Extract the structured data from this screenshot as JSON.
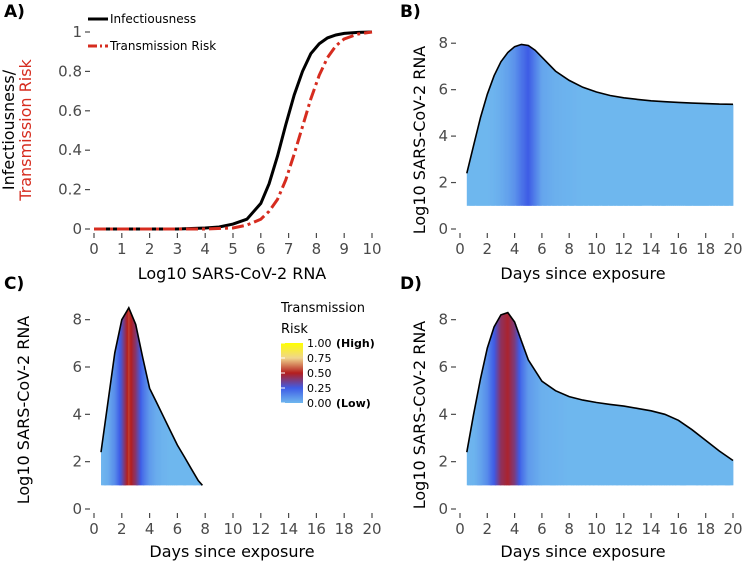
{
  "colors": {
    "infectiousness": "#000000",
    "transmission": "#d62c1f",
    "area_base": "#87ceeb",
    "risk_low": "#6fb7ee",
    "risk_quarter": "#3e5ce6",
    "risk_mid": "#b41e1e",
    "risk_three_quarter": "#f0d58c",
    "risk_high": "#ffff00"
  },
  "chart_data": [
    {
      "panel": "A)",
      "type": "line",
      "ylabel_line1": "Infectiousness/",
      "ylabel_line2": "Transmission Risk",
      "xlabel": "Log10 SARS-CoV-2 RNA",
      "xlim": [
        0,
        10
      ],
      "ylim": [
        0,
        1
      ],
      "x_ticks": [
        "0",
        "1",
        "2",
        "3",
        "4",
        "5",
        "6",
        "7",
        "8",
        "9",
        "10"
      ],
      "y_ticks": [
        "0",
        "0.2",
        "0.4",
        "0.6",
        "0.8",
        "1"
      ],
      "legend": [
        "Infectiousness",
        "Transmission  Risk"
      ],
      "series": [
        {
          "name": "Infectiousness",
          "x": [
            0,
            1,
            2,
            3,
            4,
            4.5,
            5,
            5.5,
            6,
            6.3,
            6.6,
            6.9,
            7.2,
            7.5,
            7.8,
            8.1,
            8.4,
            8.7,
            9,
            9.5,
            10
          ],
          "y": [
            0,
            0,
            0,
            0,
            0.005,
            0.01,
            0.025,
            0.05,
            0.13,
            0.23,
            0.37,
            0.53,
            0.68,
            0.8,
            0.89,
            0.94,
            0.97,
            0.985,
            0.993,
            0.998,
            1
          ]
        },
        {
          "name": "Transmission  Risk",
          "x": [
            0,
            1,
            2,
            3,
            4,
            5,
            5.5,
            6,
            6.3,
            6.6,
            6.9,
            7.2,
            7.5,
            7.8,
            8.1,
            8.4,
            8.7,
            9,
            9.5,
            10
          ],
          "y": [
            0,
            0,
            0,
            0,
            0,
            0.005,
            0.02,
            0.05,
            0.09,
            0.15,
            0.25,
            0.38,
            0.52,
            0.66,
            0.78,
            0.87,
            0.93,
            0.965,
            0.99,
            1
          ]
        }
      ]
    },
    {
      "panel": "B)",
      "type": "area",
      "xlabel": "Days since exposure",
      "ylabel": "Log10 SARS-CoV-2 RNA",
      "xlim": [
        0,
        20
      ],
      "ylim": [
        0,
        9
      ],
      "x_ticks": [
        "0",
        "2",
        "4",
        "6",
        "8",
        "10",
        "12",
        "14",
        "16",
        "18",
        "20"
      ],
      "y_ticks": [
        "0",
        "2",
        "4",
        "6",
        "8"
      ],
      "baseline": 1,
      "x": [
        0.5,
        1,
        1.5,
        2,
        2.5,
        3,
        3.5,
        4,
        4.5,
        5,
        5.5,
        6,
        7,
        8,
        9,
        10,
        11,
        12,
        13,
        14,
        15,
        16,
        17,
        18,
        19,
        20
      ],
      "y": [
        2.4,
        3.6,
        4.8,
        5.8,
        6.6,
        7.2,
        7.6,
        7.85,
        7.95,
        7.9,
        7.7,
        7.4,
        6.8,
        6.4,
        6.1,
        5.9,
        5.75,
        5.65,
        5.58,
        5.52,
        5.48,
        5.45,
        5.42,
        5.4,
        5.38,
        5.37
      ],
      "risk": [
        0,
        0,
        0,
        0,
        0.01,
        0.03,
        0.06,
        0.1,
        0.18,
        0.25,
        0.15,
        0.05,
        0.02,
        0.01,
        0,
        0,
        0,
        0,
        0,
        0,
        0,
        0,
        0,
        0,
        0,
        0
      ]
    },
    {
      "panel": "C)",
      "type": "area",
      "xlabel": "Days since exposure",
      "ylabel": "Log10 SARS-CoV-2 RNA",
      "xlim": [
        0,
        20
      ],
      "ylim": [
        0,
        9
      ],
      "x_ticks": [
        "0",
        "2",
        "4",
        "6",
        "8",
        "10",
        "12",
        "14",
        "16",
        "18",
        "20"
      ],
      "y_ticks": [
        "0",
        "2",
        "4",
        "6",
        "8"
      ],
      "baseline": 1,
      "x": [
        0.5,
        1,
        1.5,
        2,
        2.5,
        3,
        3.5,
        4,
        4.5,
        5,
        5.5,
        6,
        6.5,
        7,
        7.5,
        7.8
      ],
      "y": [
        2.4,
        4.5,
        6.6,
        8.0,
        8.5,
        7.8,
        6.4,
        5.1,
        4.5,
        3.9,
        3.3,
        2.7,
        2.2,
        1.7,
        1.2,
        1.0
      ],
      "risk": [
        0,
        0.03,
        0.12,
        0.3,
        0.55,
        0.4,
        0.2,
        0.08,
        0.03,
        0.01,
        0,
        0,
        0,
        0,
        0,
        0
      ]
    },
    {
      "panel": "D)",
      "type": "area",
      "xlabel": "Days since exposure",
      "ylabel": "Log10 SARS-CoV-2 RNA",
      "xlim": [
        0,
        20
      ],
      "ylim": [
        0,
        9
      ],
      "x_ticks": [
        "0",
        "2",
        "4",
        "6",
        "8",
        "10",
        "12",
        "14",
        "16",
        "18",
        "20"
      ],
      "y_ticks": [
        "0",
        "2",
        "4",
        "6",
        "8"
      ],
      "baseline": 1,
      "x": [
        0.5,
        1,
        1.5,
        2,
        2.5,
        3,
        3.5,
        4,
        4.5,
        5,
        6,
        7,
        8,
        9,
        10,
        11,
        12,
        13,
        14,
        15,
        16,
        17,
        18,
        19,
        20
      ],
      "y": [
        2.4,
        4.0,
        5.5,
        6.8,
        7.7,
        8.2,
        8.3,
        7.9,
        7.1,
        6.3,
        5.4,
        5.0,
        4.75,
        4.6,
        4.5,
        4.42,
        4.35,
        4.25,
        4.15,
        4.0,
        3.75,
        3.35,
        2.9,
        2.45,
        2.05
      ],
      "risk": [
        0,
        0.01,
        0.05,
        0.12,
        0.25,
        0.42,
        0.48,
        0.38,
        0.2,
        0.08,
        0.02,
        0.01,
        0,
        0,
        0,
        0,
        0,
        0,
        0,
        0,
        0,
        0,
        0,
        0,
        0
      ]
    }
  ],
  "colorbar": {
    "title_line1": "Transmission",
    "title_line2": "Risk",
    "labels": [
      {
        "value": "1.00",
        "note": "(High)"
      },
      {
        "value": "0.75",
        "note": ""
      },
      {
        "value": "0.50",
        "note": ""
      },
      {
        "value": "0.25",
        "note": ""
      },
      {
        "value": "0.00",
        "note": "(Low)"
      }
    ]
  }
}
